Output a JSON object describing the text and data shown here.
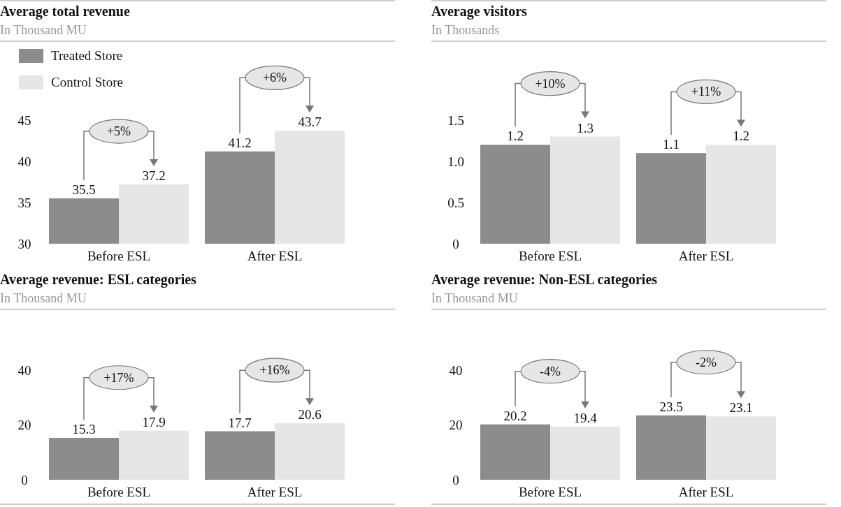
{
  "chart_data": [
    {
      "type": "bar",
      "title": "Average total revenue",
      "subtitle": "In Thousand MU",
      "categories": [
        "Before ESL",
        "After ESL"
      ],
      "legend": "top left",
      "data_labels": true,
      "ylim": [
        30,
        45
      ],
      "yticks": [
        30,
        35,
        40,
        45
      ],
      "annotations": [
        "+5%",
        "+6%"
      ],
      "series": [
        {
          "name": "Treated Store",
          "color": "#8c8c8c",
          "values": [
            35.5,
            41.2
          ]
        },
        {
          "name": "Control Store",
          "color": "#e6e6e6",
          "values": [
            37.2,
            43.7
          ]
        }
      ]
    },
    {
      "type": "bar",
      "title": "Average visitors",
      "subtitle": "In Thousands",
      "categories": [
        "Before ESL",
        "After ESL"
      ],
      "data_labels": true,
      "ylim": [
        0,
        1.5
      ],
      "yticks": [
        {
          "value": 0,
          "label": "0"
        },
        {
          "value": 0.5,
          "label": "0.5"
        },
        {
          "value": 1,
          "label": "1.0"
        },
        {
          "value": 1.5,
          "label": "1.5"
        }
      ],
      "annotations": [
        "+10%",
        "+11%"
      ],
      "series": [
        {
          "color": "#8c8c8c",
          "values": [
            1.2,
            1.1
          ]
        },
        {
          "color": "#e6e6e6",
          "values": [
            1.3,
            1.2
          ]
        }
      ]
    },
    {
      "type": "bar",
      "title": "Average revenue: ESL categories",
      "subtitle": "In Thousand MU",
      "categories": [
        "Before ESL",
        "After ESL"
      ],
      "data_labels": true,
      "ylim": [
        0,
        40
      ],
      "yticks": [
        0,
        20,
        40
      ],
      "annotations": [
        "+17%",
        "+16%"
      ],
      "series": [
        {
          "color": "#8c8c8c",
          "values": [
            15.3,
            17.7
          ]
        },
        {
          "color": "#e6e6e6",
          "values": [
            17.9,
            20.6
          ]
        }
      ]
    },
    {
      "type": "bar",
      "title": "Average revenue: Non-ESL categories",
      "subtitle": "In Thousand MU",
      "categories": [
        "Before ESL",
        "After ESL"
      ],
      "data_labels": true,
      "ylim": [
        0,
        40
      ],
      "yticks": [
        0,
        20,
        40
      ],
      "annotations": [
        "-4%",
        "-2%"
      ],
      "series": [
        {
          "color": "#8c8c8c",
          "values": [
            20.2,
            23.5
          ]
        },
        {
          "color": "#e6e6e6",
          "values": [
            19.4,
            23.1
          ]
        }
      ]
    }
  ]
}
